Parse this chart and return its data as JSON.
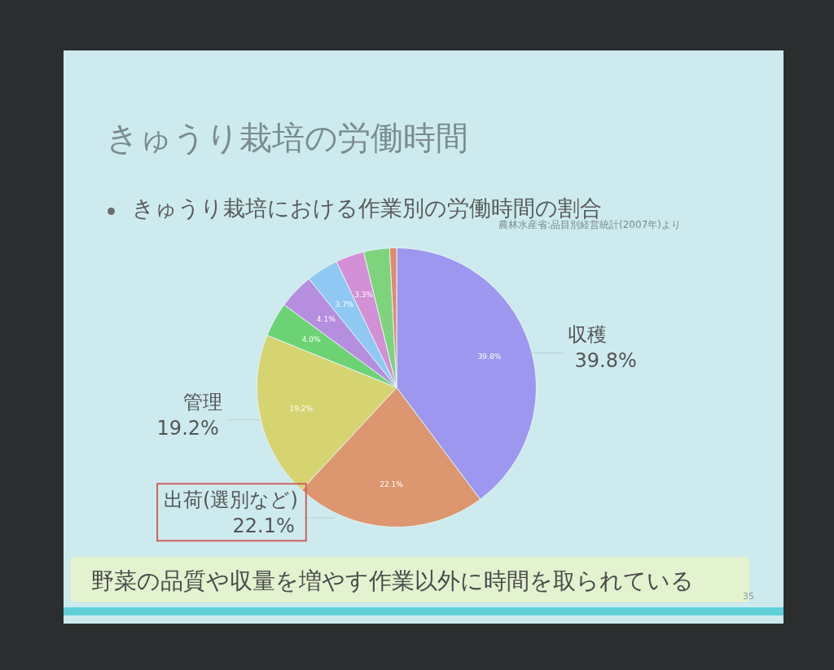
{
  "chart_data": {
    "type": "pie",
    "title": "きゅうり栽培の労働時間",
    "subtitle": "きゅうり栽培における作業別の労働時間の割合",
    "categories": [
      "収穫",
      "出荷(選別など)",
      "管理",
      null,
      null,
      null,
      null,
      null,
      null
    ],
    "values": [
      39.8,
      22.1,
      19.2,
      4.0,
      4.1,
      3.7,
      3.3,
      3.0,
      0.8
    ],
    "colors": [
      "#9d97f0",
      "#dc9670",
      "#d6d471",
      "#6dd274",
      "#b68ee0",
      "#8fc8f2",
      "#d490d6",
      "#7dd47c",
      "#e08a6e"
    ],
    "value_labels": [
      "39.8%",
      "22.1%",
      "19.2%",
      "4.0%",
      "4.1%",
      "3.7%",
      "3.3%",
      null,
      null
    ],
    "annotations": [
      "農林水産省:品目別経営統計(2007年)より",
      "野菜の品質や収量を増やす作業以外に時間を取られている",
      "35"
    ]
  }
}
